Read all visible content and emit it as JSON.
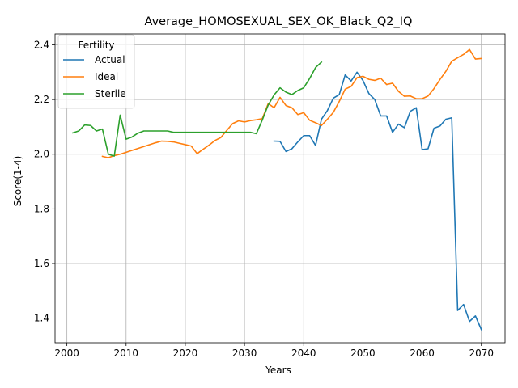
{
  "chart_data": {
    "type": "line",
    "title": "Average_HOMOSEXUAL_SEX_OK_Black_Q2_IQ",
    "xlabel": "Years",
    "ylabel": "Score(1-4)",
    "xlim": [
      1998,
      2074
    ],
    "ylim": [
      1.31,
      2.44
    ],
    "xticks": [
      2000,
      2010,
      2020,
      2030,
      2040,
      2050,
      2060,
      2070
    ],
    "yticks": [
      1.4,
      1.6,
      1.8,
      2.0,
      2.2,
      2.4
    ],
    "grid": true,
    "legend": {
      "title": "Fertility",
      "placement": "top-left"
    },
    "series": [
      {
        "name": "Actual",
        "color": "#1f77b4",
        "x": [
          2035,
          2036,
          2037,
          2038,
          2039,
          2040,
          2041,
          2042,
          2043,
          2044,
          2045,
          2046,
          2047,
          2048,
          2049,
          2050,
          2051,
          2052,
          2053,
          2054,
          2055,
          2056,
          2057,
          2058,
          2059,
          2060,
          2061,
          2062,
          2063,
          2064,
          2065,
          2066,
          2067,
          2068,
          2069,
          2070
        ],
        "y": [
          2.048,
          2.047,
          2.01,
          2.02,
          2.045,
          2.068,
          2.068,
          2.032,
          2.128,
          2.16,
          2.205,
          2.218,
          2.29,
          2.268,
          2.3,
          2.27,
          2.222,
          2.2,
          2.14,
          2.14,
          2.08,
          2.11,
          2.097,
          2.157,
          2.17,
          2.017,
          2.02,
          2.095,
          2.103,
          2.128,
          2.133,
          1.428,
          1.45,
          1.388,
          1.408,
          1.358
        ]
      },
      {
        "name": "Ideal",
        "color": "#ff7f0e",
        "x": [
          2006,
          2007,
          2008,
          2009,
          2010,
          2011,
          2012,
          2013,
          2014,
          2015,
          2016,
          2017,
          2018,
          2019,
          2020,
          2021,
          2022,
          2023,
          2024,
          2025,
          2026,
          2027,
          2028,
          2029,
          2030,
          2031,
          2032,
          2033,
          2034,
          2035,
          2036,
          2037,
          2038,
          2039,
          2040,
          2041,
          2042,
          2043,
          2044,
          2045,
          2046,
          2047,
          2048,
          2049,
          2050,
          2051,
          2052,
          2053,
          2054,
          2055,
          2056,
          2057,
          2058,
          2059,
          2060,
          2061,
          2062,
          2063,
          2064,
          2065,
          2066,
          2067,
          2068,
          2069,
          2070
        ],
        "y": [
          1.992,
          1.987,
          1.995,
          2.0,
          2.007,
          2.014,
          2.021,
          2.028,
          2.035,
          2.042,
          2.048,
          2.047,
          2.045,
          2.04,
          2.035,
          2.03,
          2.002,
          2.018,
          2.033,
          2.05,
          2.061,
          2.087,
          2.112,
          2.122,
          2.118,
          2.123,
          2.126,
          2.13,
          2.185,
          2.17,
          2.208,
          2.178,
          2.17,
          2.145,
          2.152,
          2.124,
          2.115,
          2.105,
          2.128,
          2.153,
          2.193,
          2.238,
          2.248,
          2.28,
          2.285,
          2.274,
          2.27,
          2.278,
          2.255,
          2.26,
          2.23,
          2.212,
          2.213,
          2.203,
          2.203,
          2.213,
          2.24,
          2.273,
          2.303,
          2.34,
          2.353,
          2.365,
          2.383,
          2.348,
          2.35
        ]
      },
      {
        "name": "Sterile",
        "color": "#2ca02c",
        "x": [
          2001,
          2002,
          2003,
          2004,
          2005,
          2006,
          2007,
          2008,
          2009,
          2010,
          2011,
          2012,
          2013,
          2014,
          2015,
          2016,
          2017,
          2018,
          2019,
          2020,
          2021,
          2022,
          2023,
          2024,
          2025,
          2026,
          2027,
          2028,
          2029,
          2030,
          2031,
          2032,
          2033,
          2034,
          2035,
          2036,
          2037,
          2038,
          2039,
          2040,
          2041,
          2042,
          2043
        ],
        "y": [
          2.078,
          2.085,
          2.107,
          2.105,
          2.085,
          2.092,
          2.0,
          1.993,
          2.143,
          2.055,
          2.063,
          2.077,
          2.085,
          2.085,
          2.085,
          2.085,
          2.085,
          2.08,
          2.08,
          2.08,
          2.08,
          2.08,
          2.08,
          2.08,
          2.08,
          2.08,
          2.08,
          2.08,
          2.08,
          2.08,
          2.08,
          2.075,
          2.125,
          2.18,
          2.217,
          2.243,
          2.227,
          2.218,
          2.233,
          2.243,
          2.277,
          2.317,
          2.337
        ]
      }
    ]
  }
}
